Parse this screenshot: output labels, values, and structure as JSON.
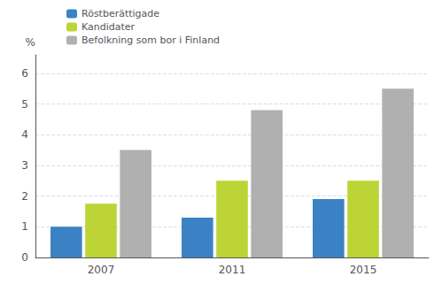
{
  "chart_data": {
    "type": "bar",
    "categories": [
      "2007",
      "2011",
      "2015"
    ],
    "series": [
      {
        "name": "Röstberättigade",
        "color": "#3b82c4",
        "values": [
          1.0,
          1.3,
          1.9
        ]
      },
      {
        "name": "Kandidater",
        "color": "#bcd435",
        "values": [
          1.75,
          2.5,
          2.5
        ]
      },
      {
        "name": "Befolkning som bor i Finland",
        "color": "#b0b0b0",
        "values": [
          3.5,
          4.8,
          5.5
        ]
      }
    ],
    "ylabel": "%",
    "ylim": [
      0,
      6.6
    ],
    "yticks": [
      0,
      1,
      2,
      3,
      4,
      5,
      6
    ],
    "grid": true,
    "legend": "upper left"
  }
}
